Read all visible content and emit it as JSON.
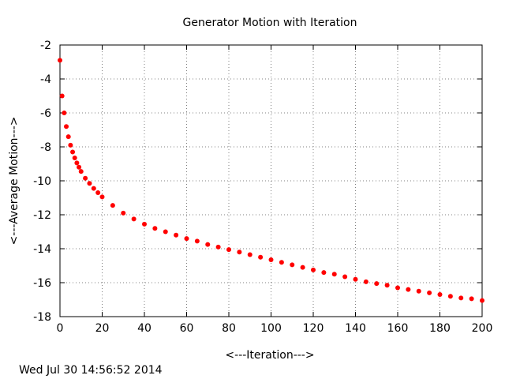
{
  "chart_data": {
    "type": "scatter",
    "title": "Generator Motion with Iteration",
    "xlabel": "<---Iteration--->",
    "ylabel": "<---Average Motion--->",
    "xlim": [
      0,
      200
    ],
    "ylim": [
      -18,
      -2
    ],
    "x_ticks": [
      0,
      20,
      40,
      60,
      80,
      100,
      120,
      140,
      160,
      180,
      200
    ],
    "y_ticks": [
      -2,
      -4,
      -6,
      -8,
      -10,
      -12,
      -14,
      -16,
      -18
    ],
    "grid": true,
    "legend": "none",
    "marker_color": "#ff0000",
    "series": [
      {
        "x": [
          0,
          1,
          2,
          3,
          4,
          5,
          6,
          7,
          8,
          9,
          10,
          12,
          14,
          16,
          18,
          20,
          25,
          30,
          35,
          40,
          45,
          50,
          55,
          60,
          65,
          70,
          75,
          80,
          85,
          90,
          95,
          100,
          105,
          110,
          115,
          120,
          125,
          130,
          135,
          140,
          145,
          150,
          155,
          160,
          165,
          170,
          175,
          180,
          185,
          190,
          195,
          200
        ],
        "y": [
          -2.9,
          -5.0,
          -6.0,
          -6.8,
          -7.4,
          -7.9,
          -8.3,
          -8.65,
          -8.95,
          -9.2,
          -9.45,
          -9.85,
          -10.15,
          -10.45,
          -10.7,
          -10.95,
          -11.45,
          -11.9,
          -12.25,
          -12.55,
          -12.8,
          -13.0,
          -13.2,
          -13.4,
          -13.55,
          -13.75,
          -13.9,
          -14.05,
          -14.2,
          -14.35,
          -14.5,
          -14.65,
          -14.8,
          -14.95,
          -15.1,
          -15.25,
          -15.4,
          -15.5,
          -15.65,
          -15.8,
          -15.95,
          -16.05,
          -16.15,
          -16.3,
          -16.4,
          -16.5,
          -16.6,
          -16.7,
          -16.8,
          -16.9,
          -16.95,
          -17.05
        ]
      }
    ]
  },
  "footer": {
    "timestamp": "Wed Jul 30 14:56:52 2014"
  }
}
